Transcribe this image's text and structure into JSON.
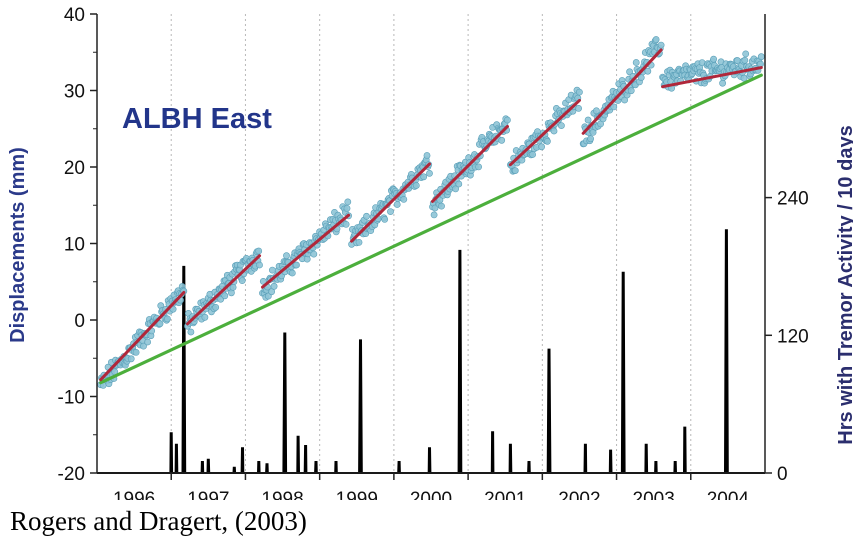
{
  "chart_data": {
    "type": "line",
    "annotation": "ALBH East",
    "ylabel_left": "Displacements (mm)",
    "ylabel_right": "Hrs with Tremor Activity / 10 days",
    "xlim": [
      1995.5,
      2004.5
    ],
    "ylim_left": [
      -20,
      40
    ],
    "ylim_right": [
      0,
      400
    ],
    "x_tick_labels": [
      "1996",
      "1997",
      "1998",
      "1999",
      "2000",
      "2001",
      "2002",
      "2003",
      "2004"
    ],
    "y_left_ticks": [
      -20,
      -10,
      0,
      10,
      20,
      30,
      40
    ],
    "y_right_ticks": [
      0,
      120,
      240
    ],
    "grid": "vertical dotted at year boundaries",
    "colors": {
      "gps_points": "#8ec4d6",
      "gps_points_edge": "#5a9fb8",
      "segments": "#b0273a",
      "trend": "#4caf3c",
      "tremor": "#000000",
      "axis": "#222222"
    },
    "trend_line": {
      "x": [
        1995.55,
        2004.45
      ],
      "y": [
        -8.2,
        32
      ]
    },
    "segment_lines": [
      {
        "x": [
          1995.55,
          1996.67
        ],
        "y": [
          -7.8,
          3.6
        ]
      },
      {
        "x": [
          1996.72,
          1997.69
        ],
        "y": [
          -0.5,
          8.4
        ]
      },
      {
        "x": [
          1997.73,
          1998.89
        ],
        "y": [
          4.3,
          13.7
        ]
      },
      {
        "x": [
          1998.93,
          1999.98
        ],
        "y": [
          10.3,
          20.4
        ]
      },
      {
        "x": [
          2000.02,
          2001.03
        ],
        "y": [
          15.5,
          25.3
        ]
      },
      {
        "x": [
          2001.07,
          2002.0
        ],
        "y": [
          20.3,
          28.7
        ]
      },
      {
        "x": [
          2002.05,
          2003.1
        ],
        "y": [
          24.4,
          35.3
        ]
      },
      {
        "x": [
          2003.12,
          2004.45
        ],
        "y": [
          30.5,
          33.0
        ]
      }
    ],
    "gps_breakpoints": [
      {
        "x": 1995.55,
        "y": -8.6
      },
      {
        "x": 1996.67,
        "y": 4.0
      },
      {
        "x": 1996.72,
        "y": -0.8
      },
      {
        "x": 1997.69,
        "y": 8.8
      },
      {
        "x": 1997.73,
        "y": 4.0
      },
      {
        "x": 1998.89,
        "y": 14.2
      },
      {
        "x": 1998.93,
        "y": 10.0
      },
      {
        "x": 1999.98,
        "y": 20.8
      },
      {
        "x": 2000.02,
        "y": 15.2
      },
      {
        "x": 2001.03,
        "y": 25.8
      },
      {
        "x": 2001.07,
        "y": 20.0
      },
      {
        "x": 2002.0,
        "y": 29.0
      },
      {
        "x": 2002.05,
        "y": 24.0
      },
      {
        "x": 2003.1,
        "y": 36.0
      },
      {
        "x": 2003.12,
        "y": 31.5
      },
      {
        "x": 2004.45,
        "y": 33.5
      }
    ],
    "tremor_spikes": [
      {
        "x": 1996.5,
        "hours": 35
      },
      {
        "x": 1996.57,
        "hours": 25
      },
      {
        "x": 1996.67,
        "hours": 180
      },
      {
        "x": 1996.92,
        "hours": 10
      },
      {
        "x": 1997.0,
        "hours": 12
      },
      {
        "x": 1997.35,
        "hours": 5
      },
      {
        "x": 1997.46,
        "hours": 22
      },
      {
        "x": 1997.68,
        "hours": 10
      },
      {
        "x": 1997.79,
        "hours": 8
      },
      {
        "x": 1998.03,
        "hours": 122
      },
      {
        "x": 1998.21,
        "hours": 32
      },
      {
        "x": 1998.31,
        "hours": 24
      },
      {
        "x": 1998.45,
        "hours": 10
      },
      {
        "x": 1998.72,
        "hours": 10
      },
      {
        "x": 1999.05,
        "hours": 116
      },
      {
        "x": 1999.57,
        "hours": 10
      },
      {
        "x": 1999.98,
        "hours": 22
      },
      {
        "x": 2000.39,
        "hours": 194
      },
      {
        "x": 2000.83,
        "hours": 36
      },
      {
        "x": 2001.07,
        "hours": 25
      },
      {
        "x": 2001.32,
        "hours": 10
      },
      {
        "x": 2001.59,
        "hours": 108
      },
      {
        "x": 2002.08,
        "hours": 25
      },
      {
        "x": 2002.42,
        "hours": 20
      },
      {
        "x": 2002.59,
        "hours": 175
      },
      {
        "x": 2002.9,
        "hours": 25
      },
      {
        "x": 2003.03,
        "hours": 10
      },
      {
        "x": 2003.29,
        "hours": 10
      },
      {
        "x": 2003.42,
        "hours": 40
      },
      {
        "x": 2003.98,
        "hours": 212
      }
    ]
  },
  "caption": "Rogers and Dragert, (2003)"
}
